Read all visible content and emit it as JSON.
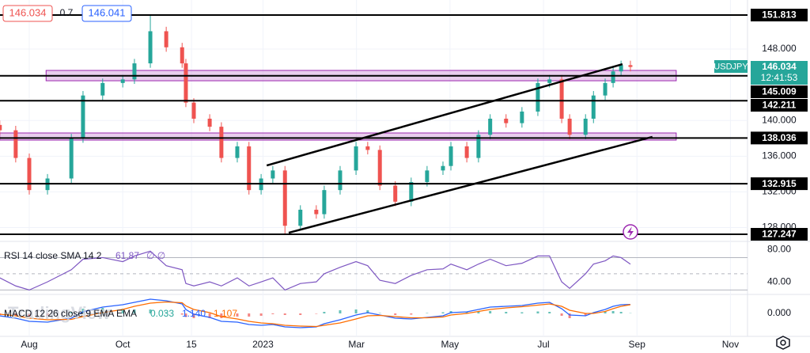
{
  "header": {
    "bid": 146.034,
    "spread": 0.7,
    "ask": 146.041
  },
  "watermark": "TradingView",
  "symbol_tag": {
    "symbol": "USDJPY",
    "last": 146.034,
    "countdown": "12:41:53"
  },
  "chart_data": [
    {
      "type": "candlestick",
      "up_color": "#26a69a",
      "down_color": "#ef5350",
      "x": [
        -0.63,
        -0.29,
        0,
        0.39,
        0.9,
        1.15,
        1.57,
        2.0,
        2.25,
        2.59,
        2.93,
        3.27,
        3.35,
        3.52,
        3.86,
        4.11,
        4.45,
        4.7,
        4.96,
        5.21,
        5.47,
        5.8,
        6.14,
        6.31,
        6.65,
        6.99,
        7.24,
        7.5,
        7.83,
        8.17,
        8.51,
        8.85,
        9.02,
        9.36,
        9.61,
        9.86,
        10.2,
        10.54,
        10.88,
        11.13,
        11.39,
        11.56,
        11.9,
        12.07,
        12.32,
        12.49,
        12.66,
        12.86
      ],
      "open": [
        139.5,
        138.9,
        135.8,
        132.2,
        133.5,
        138.0,
        142.8,
        144.2,
        144.6,
        146.4,
        150.0,
        148.2,
        146.4,
        142.0,
        140.2,
        139.3,
        135.8,
        137.1,
        132.2,
        133.5,
        134.4,
        128.2,
        130.0,
        129.5,
        132.2,
        134.4,
        137.1,
        136.7,
        132.7,
        130.9,
        133.1,
        134.4,
        134.9,
        137.1,
        135.8,
        138.4,
        140.2,
        139.7,
        141.0,
        144.2,
        144.6,
        140.2,
        138.4,
        140.2,
        142.8,
        144.2,
        145.5,
        146.2
      ],
      "high": [
        140.0,
        139.4,
        136.3,
        134.0,
        138.5,
        143.3,
        144.7,
        145.1,
        146.9,
        151.9,
        150.5,
        148.7,
        146.9,
        142.5,
        140.7,
        139.8,
        137.6,
        137.6,
        134.0,
        134.9,
        134.9,
        130.5,
        130.5,
        132.7,
        134.9,
        137.6,
        137.6,
        137.2,
        133.2,
        133.6,
        134.9,
        135.4,
        137.6,
        137.6,
        138.9,
        140.7,
        140.7,
        141.5,
        144.7,
        145.1,
        145.1,
        140.7,
        140.7,
        143.3,
        144.7,
        146.0,
        146.7,
        146.7
      ],
      "low": [
        138.4,
        135.3,
        131.7,
        131.7,
        133.0,
        137.5,
        142.3,
        143.7,
        144.1,
        145.9,
        147.7,
        145.9,
        141.5,
        139.7,
        138.8,
        135.3,
        135.3,
        131.7,
        131.7,
        133.0,
        127.2,
        127.7,
        129.0,
        129.0,
        131.7,
        133.9,
        136.2,
        132.2,
        130.4,
        130.4,
        132.6,
        133.9,
        134.4,
        135.3,
        135.3,
        137.9,
        139.2,
        139.2,
        140.5,
        143.7,
        139.7,
        137.9,
        137.9,
        139.7,
        142.3,
        143.7,
        145.0,
        145.5
      ],
      "close": [
        138.9,
        135.8,
        132.2,
        133.5,
        138.0,
        142.8,
        144.2,
        144.6,
        146.4,
        150.0,
        148.2,
        146.4,
        142.0,
        140.2,
        139.3,
        135.8,
        137.1,
        132.2,
        133.5,
        134.4,
        128.2,
        130.0,
        129.5,
        132.2,
        134.4,
        137.1,
        136.7,
        132.7,
        130.9,
        133.1,
        134.4,
        134.9,
        137.1,
        135.8,
        138.4,
        140.2,
        139.7,
        141.0,
        144.2,
        144.6,
        140.2,
        138.4,
        140.2,
        142.8,
        144.2,
        145.5,
        146.2,
        146.0
      ],
      "xlim": [
        -0.626,
        15.365
      ],
      "ylim": [
        126.45,
        153.5
      ],
      "yticks": [
        {
          "value": 148,
          "label": "148.000"
        },
        {
          "value": 140,
          "label": "140.000"
        },
        {
          "value": 136,
          "label": "136.000"
        },
        {
          "value": 132,
          "label": "132.000"
        },
        {
          "value": 128,
          "label": "128.000"
        }
      ],
      "levels": [
        151.813,
        145.009,
        142.211,
        138.036,
        132.915,
        127.247
      ],
      "zones": [
        {
          "x": [
            0.36,
            13.84
          ],
          "y": [
            144.45,
            145.61
          ]
        },
        {
          "x": [
            -0.63,
            13.84
          ],
          "y": [
            137.8,
            138.6
          ]
        }
      ],
      "trendlines": [
        {
          "x": [
            5.08,
            12.69
          ],
          "y": [
            134.96,
            146.31
          ]
        },
        {
          "x": [
            5.55,
            13.33
          ],
          "y": [
            127.42,
            138.16
          ]
        }
      ],
      "grid": true
    },
    {
      "type": "rsi",
      "title": "RSI 14 close SMA 14 2",
      "last": 61.87,
      "na": "∅ ∅",
      "color": "#7e57c2",
      "values": [
        45,
        35,
        30,
        40,
        55,
        68,
        70,
        65,
        72,
        78,
        60,
        55,
        38,
        35,
        40,
        35,
        45,
        35,
        40,
        45,
        30,
        38,
        40,
        50,
        58,
        65,
        60,
        42,
        38,
        48,
        55,
        56,
        62,
        55,
        62,
        68,
        60,
        63,
        72,
        72,
        40,
        32,
        50,
        62,
        66,
        72,
        70,
        61.87
      ],
      "ylim": [
        24.5,
        90
      ],
      "yticks": [
        {
          "value": 80,
          "label": "80.00"
        },
        {
          "value": 40,
          "label": "40.00"
        }
      ],
      "bands": [
        70,
        50,
        30
      ]
    },
    {
      "type": "macd",
      "title": "MACD 12 26 close 9 EMA EMA",
      "histogram": {
        "last": 0.033,
        "up_color": "#26a69a",
        "down_color": "#ef5350",
        "values": [
          -0.2,
          -0.3,
          -0.4,
          -0.3,
          0.15,
          0.6,
          0.7,
          0.6,
          0.5,
          0.5,
          0.15,
          -0.15,
          -0.45,
          -0.6,
          -0.6,
          -0.6,
          -0.4,
          -0.4,
          -0.3,
          -0.1,
          -0.2,
          -0.2,
          -0.05,
          0.2,
          0.4,
          0.5,
          0.4,
          0.05,
          -0.2,
          -0.15,
          0.05,
          0.15,
          0.3,
          0.2,
          0.25,
          0.3,
          0.2,
          0.15,
          0.25,
          0.2,
          -0.3,
          -0.6,
          -0.3,
          0.1,
          0.25,
          0.3,
          0.2,
          0.033
        ]
      },
      "macd": {
        "last": {
          "value": 1.14,
          "label": "1.140"
        },
        "color": "#2962ff",
        "values": [
          -0.3,
          -0.6,
          -1.0,
          -1.1,
          -0.6,
          0.2,
          0.8,
          1.1,
          1.4,
          1.8,
          1.6,
          1.2,
          0.5,
          -0.1,
          -0.5,
          -1.0,
          -1.1,
          -1.4,
          -1.5,
          -1.4,
          -1.7,
          -1.8,
          -1.7,
          -1.3,
          -0.8,
          -0.2,
          0.1,
          -0.2,
          -0.6,
          -0.7,
          -0.5,
          -0.3,
          0.1,
          0.2,
          0.5,
          0.8,
          0.9,
          1.0,
          1.3,
          1.4,
          0.6,
          -0.2,
          -0.3,
          0.1,
          0.5,
          0.9,
          1.1,
          1.14
        ]
      },
      "signal": {
        "last": 1.107,
        "color": "#ff6d00",
        "values": [
          -0.1,
          -0.3,
          -0.6,
          -0.8,
          -0.75,
          -0.4,
          0.1,
          0.5,
          0.9,
          1.3,
          1.45,
          1.35,
          0.95,
          0.5,
          0.1,
          -0.4,
          -0.7,
          -1.0,
          -1.2,
          -1.3,
          -1.5,
          -1.6,
          -1.65,
          -1.5,
          -1.2,
          -0.7,
          -0.3,
          -0.25,
          -0.4,
          -0.55,
          -0.55,
          -0.45,
          -0.2,
          0.0,
          0.25,
          0.5,
          0.7,
          0.85,
          1.05,
          1.2,
          0.9,
          0.4,
          0.0,
          0.0,
          0.25,
          0.6,
          0.9,
          1.107
        ]
      },
      "ylim": [
        -2.4,
        2.4
      ],
      "yticks": [
        {
          "value": 0,
          "label": "0.000"
        }
      ],
      "xticks": [
        {
          "value": 0,
          "label": "Aug"
        },
        {
          "value": 2,
          "label": "Oct"
        },
        {
          "value": 3.47,
          "label": "15"
        },
        {
          "value": 5,
          "label": "2023"
        },
        {
          "value": 7,
          "label": "Mar"
        },
        {
          "value": 9,
          "label": "May"
        },
        {
          "value": 11,
          "label": "Jul"
        },
        {
          "value": 13,
          "label": "Sep"
        },
        {
          "value": 15,
          "label": "Nov"
        }
      ]
    }
  ]
}
